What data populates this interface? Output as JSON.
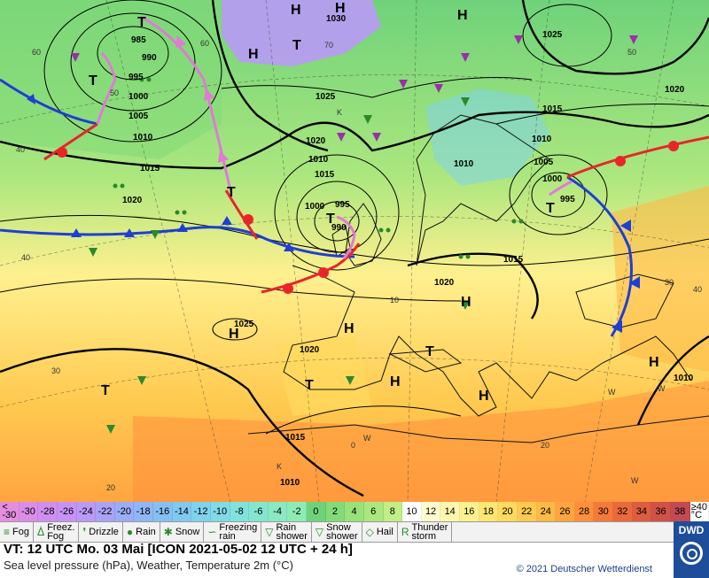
{
  "pressure_labels": [
    "985",
    "990",
    "995",
    "1000",
    "1005",
    "1010",
    "1015",
    "1020",
    "1025",
    "1030",
    "1000",
    "995",
    "990",
    "1010",
    "1015",
    "1020",
    "1025",
    "1020",
    "1015",
    "1010",
    "1005",
    "1000",
    "995",
    "1010",
    "1015",
    "1020",
    "1025",
    "1020",
    "1015",
    "1010",
    "1010"
  ],
  "center_labels": [
    "H",
    "H",
    "H",
    "H",
    "T",
    "T",
    "T",
    "T",
    "H",
    "H",
    "H",
    "T",
    "H",
    "T",
    "H",
    "H",
    "T",
    "K",
    "K",
    "W",
    "W",
    "W",
    "W"
  ],
  "temp_labels": [
    "60",
    "60",
    "40",
    "50",
    "70",
    "50",
    "40",
    "30",
    "20",
    "30",
    "40",
    "20",
    "0",
    "10"
  ],
  "legend": {
    "cells": [
      {
        "label": "<\n-30",
        "color": "#e48ee0"
      },
      {
        "label": "-30",
        "color": "#da8ee8"
      },
      {
        "label": "-28",
        "color": "#d08ff0"
      },
      {
        "label": "-26",
        "color": "#c693f5"
      },
      {
        "label": "-24",
        "color": "#b99af6"
      },
      {
        "label": "-22",
        "color": "#aaa2f7"
      },
      {
        "label": "-20",
        "color": "#9cacf7"
      },
      {
        "label": "-18",
        "color": "#8fb6f6"
      },
      {
        "label": "-16",
        "color": "#86c0f3"
      },
      {
        "label": "-14",
        "color": "#80caf0"
      },
      {
        "label": "-12",
        "color": "#7fd3ec"
      },
      {
        "label": "-10",
        "color": "#7fdbe6"
      },
      {
        "label": "-8",
        "color": "#80e2dc"
      },
      {
        "label": "-6",
        "color": "#84e6d0"
      },
      {
        "label": "-4",
        "color": "#88e9c2"
      },
      {
        "label": "-2",
        "color": "#8eebb4"
      },
      {
        "label": "0",
        "color": "#6fd27a"
      },
      {
        "label": "2",
        "color": "#83db78"
      },
      {
        "label": "4",
        "color": "#97e27a"
      },
      {
        "label": "6",
        "color": "#abe77e"
      },
      {
        "label": "8",
        "color": "#c2ee86"
      },
      {
        "label": "10",
        "color": "#ffffff"
      },
      {
        "label": "12",
        "color": "#fffbd0"
      },
      {
        "label": "14",
        "color": "#fff7b0"
      },
      {
        "label": "16",
        "color": "#fff08f"
      },
      {
        "label": "18",
        "color": "#ffe673"
      },
      {
        "label": "20",
        "color": "#ffda5e"
      },
      {
        "label": "22",
        "color": "#ffca50"
      },
      {
        "label": "24",
        "color": "#ffb946"
      },
      {
        "label": "26",
        "color": "#ffa540"
      },
      {
        "label": "28",
        "color": "#ff8f3c"
      },
      {
        "label": "30",
        "color": "#f57a3a"
      },
      {
        "label": "32",
        "color": "#ea6a3b"
      },
      {
        "label": "34",
        "color": "#de5c3f"
      },
      {
        "label": "36",
        "color": "#d05247"
      },
      {
        "label": "38",
        "color": "#c24a52"
      },
      {
        "label": "≥40\n°C",
        "color": "#ffffff"
      }
    ]
  },
  "symbols": [
    {
      "glyph": "≡",
      "label": "Fog"
    },
    {
      "glyph": "ᐄ",
      "label": "Freez.\nFog"
    },
    {
      "glyph": "❜",
      "label": "Drizzle"
    },
    {
      "glyph": "●",
      "label": "Rain"
    },
    {
      "glyph": "✱",
      "label": "Snow"
    },
    {
      "glyph": "∽",
      "label": "Freezing\nrain"
    },
    {
      "glyph": "▽",
      "label": "Rain\nshower"
    },
    {
      "glyph": "▽",
      "label": "Snow\nshower"
    },
    {
      "glyph": "◇",
      "label": "Hail"
    },
    {
      "glyph": "R",
      "label": "Thunder\nstorm"
    }
  ],
  "info": {
    "valid_time": "VT: 12 UTC Mo.   03 Mai [ICON 2021-05-02  12 UTC + 24 h]",
    "subtitle": "Sea level pressure (hPa), Weather, Temperature 2m (°C)"
  },
  "copyright": "© 2021 Deutscher Wetterdienst",
  "logo": "DWD",
  "colors": {
    "warm_front": "#e8262a",
    "cold_front": "#1f3ed6",
    "occlusion": "#e07ad6",
    "trough": "#000000"
  }
}
